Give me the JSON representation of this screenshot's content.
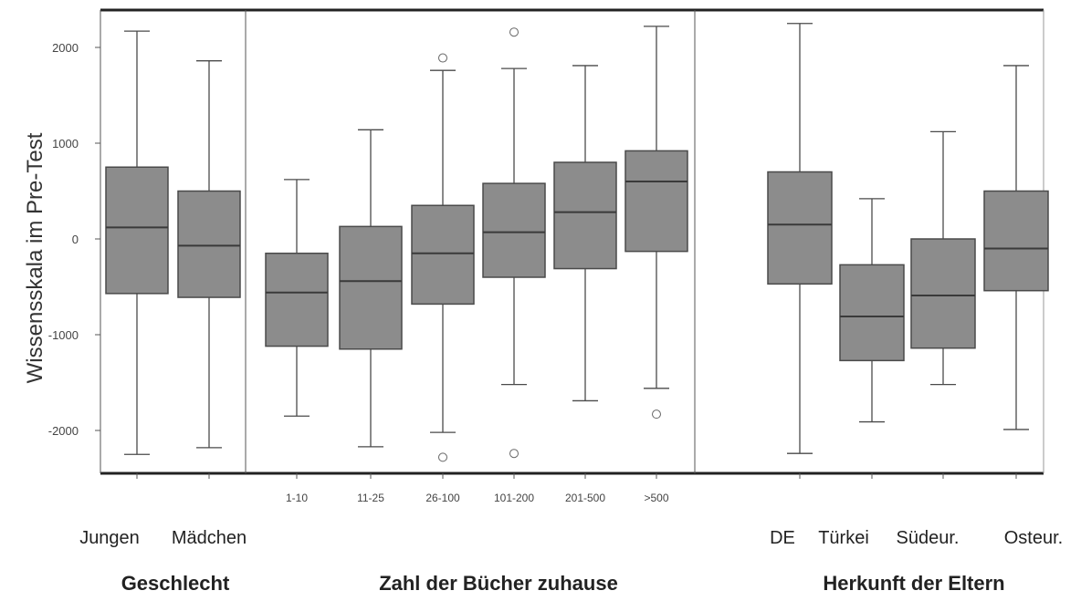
{
  "chart_data": {
    "type": "box",
    "ylabel": "Wissensskala im Pre-Test",
    "yticks": [
      2000,
      1000,
      0,
      -1000,
      -2000
    ],
    "ylim": [
      -2450,
      2350
    ],
    "groups": [
      {
        "title": "Geschlecht",
        "categories": [
          {
            "label": "Jungen",
            "min": -2250,
            "q1": -570,
            "median": 120,
            "q3": 750,
            "max": 2170,
            "outliers": []
          },
          {
            "label": "Mädchen",
            "min": -2180,
            "q1": -610,
            "median": -70,
            "q3": 500,
            "max": 1860,
            "outliers": []
          }
        ]
      },
      {
        "title": "Zahl der Bücher zuhause",
        "categories": [
          {
            "label": "1-10",
            "min": -1850,
            "q1": -1120,
            "median": -560,
            "q3": -150,
            "max": 620,
            "outliers": []
          },
          {
            "label": "11-25",
            "min": -2170,
            "q1": -1150,
            "median": -440,
            "q3": 130,
            "max": 1140,
            "outliers": []
          },
          {
            "label": "26-100",
            "min": -2020,
            "q1": -680,
            "median": -150,
            "q3": 350,
            "max": 1760,
            "outliers": [
              1890,
              -2280
            ]
          },
          {
            "label": "101-200",
            "min": -1520,
            "q1": -400,
            "median": 70,
            "q3": 580,
            "max": 1780,
            "outliers": [
              2160,
              -2240
            ]
          },
          {
            "label": "201-500",
            "min": -1690,
            "q1": -310,
            "median": 280,
            "q3": 800,
            "max": 1810,
            "outliers": []
          },
          {
            "label": ">500",
            "min": -1560,
            "q1": -130,
            "median": 600,
            "q3": 920,
            "max": 2220,
            "outliers": [
              -1830
            ]
          }
        ]
      },
      {
        "title": "Herkunft der Eltern",
        "categories": [
          {
            "label": "DE",
            "min": -2240,
            "q1": -470,
            "median": 150,
            "q3": 700,
            "max": 2250,
            "outliers": []
          },
          {
            "label": "Türkei",
            "min": -1910,
            "q1": -1270,
            "median": -810,
            "q3": -270,
            "max": 420,
            "outliers": []
          },
          {
            "label": "Südeur.",
            "min": -1520,
            "q1": -1140,
            "median": -590,
            "q3": 0,
            "max": 1120,
            "outliers": []
          },
          {
            "label": "Osteur.",
            "min": -1990,
            "q1": -540,
            "median": -100,
            "q3": 500,
            "max": 1810,
            "outliers": []
          }
        ]
      }
    ],
    "colors": {
      "box_fill": "#8c8c8c",
      "stroke": "#4a4a4a",
      "axis": "#222222"
    }
  }
}
